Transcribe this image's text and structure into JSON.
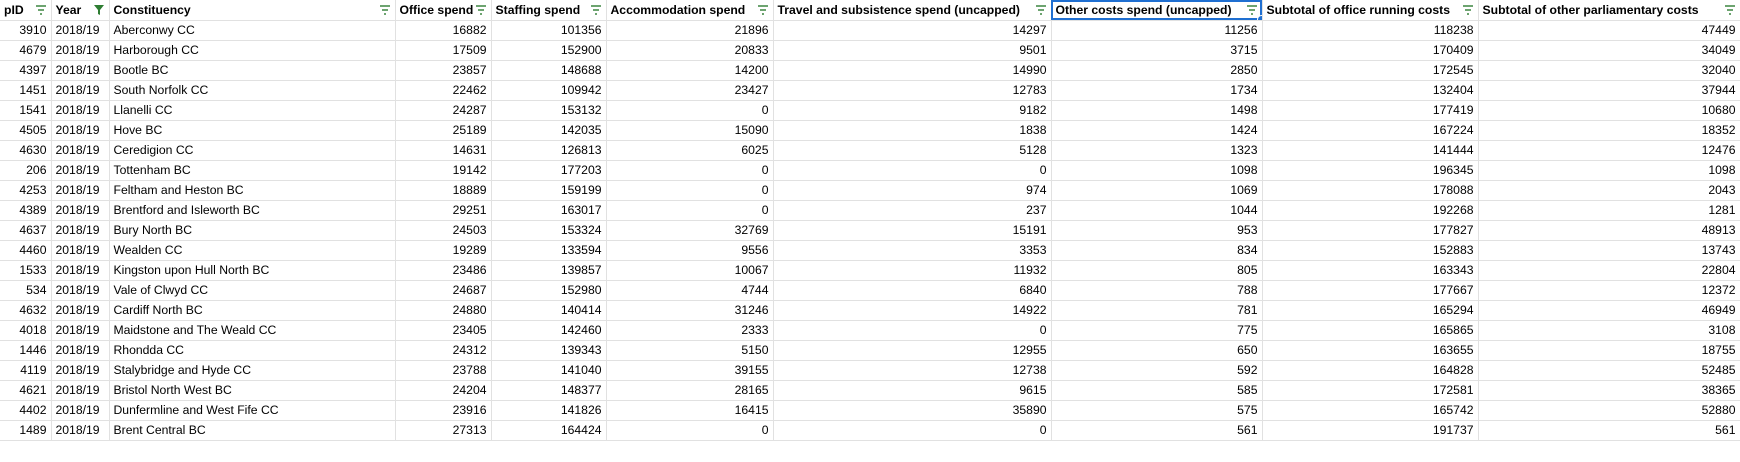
{
  "colors": {
    "filter_icon": "#2e7d32",
    "selection": "#1f6fd1",
    "gridline": "#e1e1e1"
  },
  "headers": [
    {
      "label": "pID",
      "filter": "filter-icon"
    },
    {
      "label": "Year",
      "filter": "filter-active-icon"
    },
    {
      "label": "Constituency",
      "filter": "filter-icon"
    },
    {
      "label": "Office spend",
      "filter": "filter-icon"
    },
    {
      "label": "Staffing spend",
      "filter": "filter-icon"
    },
    {
      "label": "Accommodation spend",
      "filter": "filter-icon"
    },
    {
      "label": "Travel and subsistence spend (uncapped)",
      "filter": "filter-icon"
    },
    {
      "label": "Other costs spend (uncapped)",
      "filter": "filter-icon",
      "selected": true
    },
    {
      "label": "Subtotal of office running costs",
      "filter": "filter-icon"
    },
    {
      "label": "Subtotal of other parliamentary costs",
      "filter": "filter-icon"
    }
  ],
  "rows": [
    [
      "3910",
      "2018/19",
      "Aberconwy CC",
      "16882",
      "101356",
      "21896",
      "14297",
      "11256",
      "118238",
      "47449"
    ],
    [
      "4679",
      "2018/19",
      "Harborough CC",
      "17509",
      "152900",
      "20833",
      "9501",
      "3715",
      "170409",
      "34049"
    ],
    [
      "4397",
      "2018/19",
      "Bootle BC",
      "23857",
      "148688",
      "14200",
      "14990",
      "2850",
      "172545",
      "32040"
    ],
    [
      "1451",
      "2018/19",
      "South Norfolk CC",
      "22462",
      "109942",
      "23427",
      "12783",
      "1734",
      "132404",
      "37944"
    ],
    [
      "1541",
      "2018/19",
      "Llanelli CC",
      "24287",
      "153132",
      "0",
      "9182",
      "1498",
      "177419",
      "10680"
    ],
    [
      "4505",
      "2018/19",
      "Hove BC",
      "25189",
      "142035",
      "15090",
      "1838",
      "1424",
      "167224",
      "18352"
    ],
    [
      "4630",
      "2018/19",
      "Ceredigion CC",
      "14631",
      "126813",
      "6025",
      "5128",
      "1323",
      "141444",
      "12476"
    ],
    [
      "206",
      "2018/19",
      "Tottenham BC",
      "19142",
      "177203",
      "0",
      "0",
      "1098",
      "196345",
      "1098"
    ],
    [
      "4253",
      "2018/19",
      "Feltham and Heston BC",
      "18889",
      "159199",
      "0",
      "974",
      "1069",
      "178088",
      "2043"
    ],
    [
      "4389",
      "2018/19",
      "Brentford and Isleworth BC",
      "29251",
      "163017",
      "0",
      "237",
      "1044",
      "192268",
      "1281"
    ],
    [
      "4637",
      "2018/19",
      "Bury North BC",
      "24503",
      "153324",
      "32769",
      "15191",
      "953",
      "177827",
      "48913"
    ],
    [
      "4460",
      "2018/19",
      "Wealden CC",
      "19289",
      "133594",
      "9556",
      "3353",
      "834",
      "152883",
      "13743"
    ],
    [
      "1533",
      "2018/19",
      "Kingston upon Hull North BC",
      "23486",
      "139857",
      "10067",
      "11932",
      "805",
      "163343",
      "22804"
    ],
    [
      "534",
      "2018/19",
      "Vale of Clwyd CC",
      "24687",
      "152980",
      "4744",
      "6840",
      "788",
      "177667",
      "12372"
    ],
    [
      "4632",
      "2018/19",
      "Cardiff North BC",
      "24880",
      "140414",
      "31246",
      "14922",
      "781",
      "165294",
      "46949"
    ],
    [
      "4018",
      "2018/19",
      "Maidstone and The Weald CC",
      "23405",
      "142460",
      "2333",
      "0",
      "775",
      "165865",
      "3108"
    ],
    [
      "1446",
      "2018/19",
      "Rhondda CC",
      "24312",
      "139343",
      "5150",
      "12955",
      "650",
      "163655",
      "18755"
    ],
    [
      "4119",
      "2018/19",
      "Stalybridge and Hyde CC",
      "23788",
      "141040",
      "39155",
      "12738",
      "592",
      "164828",
      "52485"
    ],
    [
      "4621",
      "2018/19",
      "Bristol North West BC",
      "24204",
      "148377",
      "28165",
      "9615",
      "585",
      "172581",
      "38365"
    ],
    [
      "4402",
      "2018/19",
      "Dunfermline and West Fife CC",
      "23916",
      "141826",
      "16415",
      "35890",
      "575",
      "165742",
      "52880"
    ],
    [
      "1489",
      "2018/19",
      "Brent Central BC",
      "27313",
      "164424",
      "0",
      "0",
      "561",
      "191737",
      "561"
    ]
  ]
}
